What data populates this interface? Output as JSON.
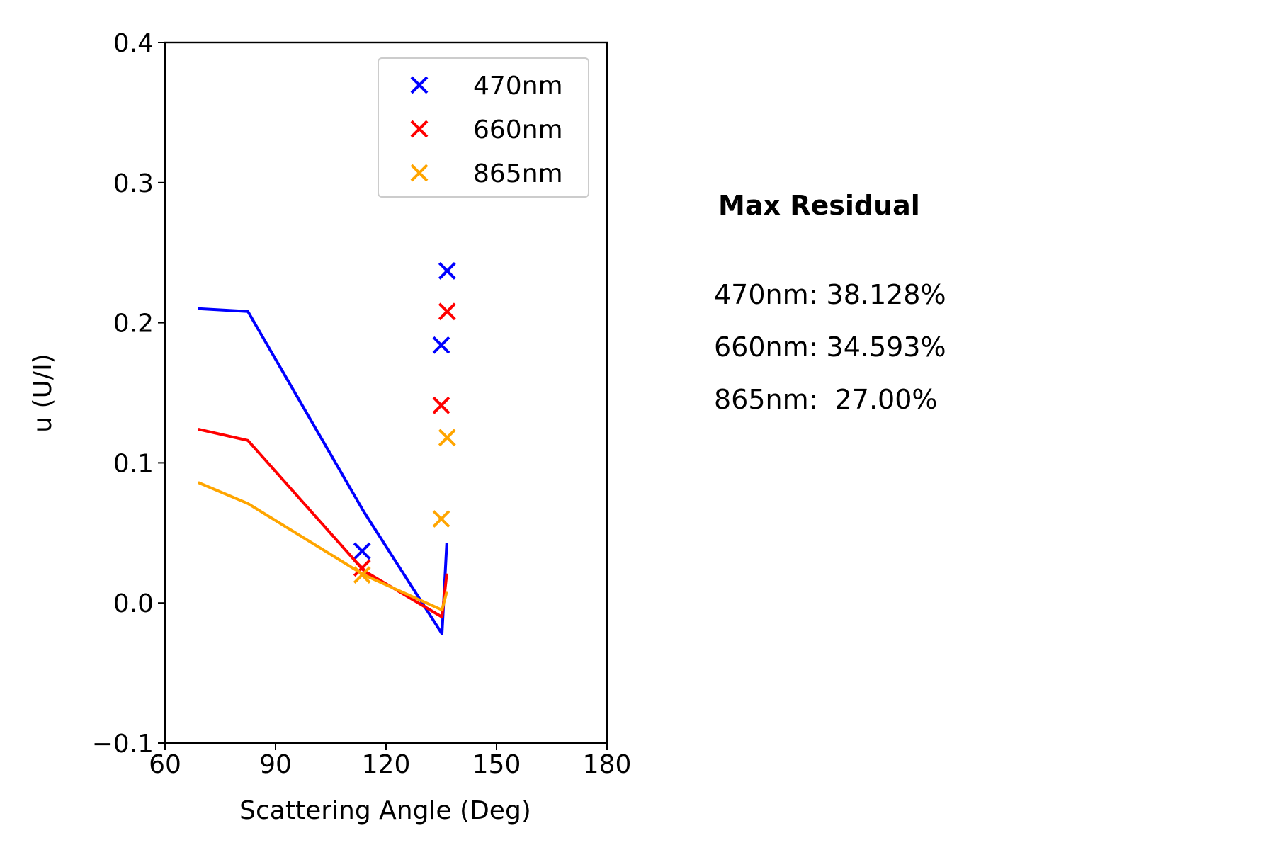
{
  "chart_data": {
    "type": "scatter",
    "xlabel": "Scattering Angle (Deg)",
    "ylabel": "u (U/I)",
    "xlim": [
      60,
      180
    ],
    "ylim": [
      -0.1,
      0.4
    ],
    "xticks": [
      "60",
      "90",
      "120",
      "150",
      "180"
    ],
    "yticks": [
      "−0.1",
      "0.0",
      "0.1",
      "0.2",
      "0.3",
      "0.4"
    ],
    "xtick_values": [
      60,
      90,
      120,
      150,
      180
    ],
    "ytick_values": [
      -0.1,
      0.0,
      0.1,
      0.2,
      0.3,
      0.4
    ],
    "legend_position": "top-right",
    "series": [
      {
        "name": "470nm",
        "color": "#0000ff",
        "model_line": {
          "x": [
            69,
            82.5,
            114,
            135.2,
            136.5
          ],
          "y": [
            0.21,
            0.208,
            0.065,
            -0.022,
            0.043
          ]
        },
        "observations": {
          "x": [
            113.5,
            135.0,
            136.6
          ],
          "y": [
            0.037,
            0.184,
            0.237
          ]
        }
      },
      {
        "name": "660nm",
        "color": "#ff0000",
        "model_line": {
          "x": [
            69,
            82.5,
            114,
            135.2,
            136.5
          ],
          "y": [
            0.124,
            0.116,
            0.023,
            -0.01,
            0.021
          ]
        },
        "observations": {
          "x": [
            113.5,
            135.0,
            136.6
          ],
          "y": [
            0.025,
            0.141,
            0.208
          ]
        }
      },
      {
        "name": "865nm",
        "color": "#ffa500",
        "model_line": {
          "x": [
            69,
            82.5,
            114,
            135.2,
            136.5
          ],
          "y": [
            0.086,
            0.071,
            0.02,
            -0.005,
            0.008
          ]
        },
        "observations": {
          "x": [
            113.5,
            135.0,
            136.6
          ],
          "y": [
            0.02,
            0.06,
            0.118
          ]
        }
      }
    ]
  },
  "residuals": {
    "title": "Max Residual",
    "lines": [
      "470nm: 38.128%",
      "660nm: 34.593%",
      "865nm:  27.00%"
    ]
  }
}
